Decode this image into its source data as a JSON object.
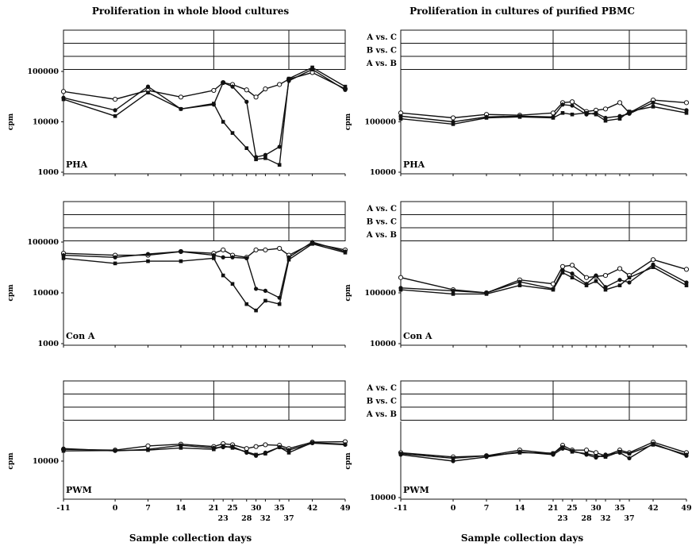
{
  "figure": {
    "titles": [
      "Proliferation in whole blood cultures",
      "Proliferation in cultures of purified PBMC"
    ],
    "xlabel": "Sample collection days",
    "ylabel": "cpm"
  },
  "chart_data": [
    {
      "type": "line",
      "title": "Proliferation in whole blood cultures",
      "panel_label": "PHA",
      "xlabel": "Sample collection days",
      "ylabel": "cpm",
      "yscale": "log",
      "ylim": [
        1000,
        100000
      ],
      "yticks": [
        "1000",
        "10000",
        "100000"
      ],
      "x": [
        -11,
        0,
        7,
        14,
        21,
        23,
        25,
        28,
        30,
        32,
        35,
        37,
        42,
        49
      ],
      "xtick_labels_top": [
        "-11",
        "0",
        "7",
        "14",
        "21",
        "25",
        "30",
        "35",
        "42",
        "49"
      ],
      "xtick_labels_bottom": [
        "23",
        "28",
        "32",
        "37"
      ],
      "series": [
        {
          "marker": "open-circle",
          "values": [
            40000,
            28000,
            42000,
            31000,
            42000,
            60000,
            55000,
            43000,
            31000,
            45000,
            55000,
            70000,
            95000,
            45000
          ]
        },
        {
          "marker": "filled-circle",
          "values": [
            30000,
            17000,
            50000,
            18000,
            22000,
            60000,
            50000,
            25000,
            2000,
            2200,
            3200,
            65000,
            110000,
            43000
          ]
        },
        {
          "marker": "filled-square",
          "values": [
            28000,
            13000,
            38000,
            18000,
            23000,
            10000,
            6000,
            3000,
            1800,
            1900,
            1400,
            72000,
            120000,
            50000
          ]
        }
      ],
      "significance": []
    },
    {
      "type": "line",
      "title": "Proliferation in cultures of purified PBMC",
      "panel_label": "PHA",
      "xlabel": "Sample collection days",
      "ylabel": "cpm",
      "yscale": "log",
      "ylim": [
        10000,
        1000000
      ],
      "yticks": [
        "10000",
        "100000"
      ],
      "x": [
        -11,
        0,
        7,
        14,
        21,
        23,
        25,
        28,
        30,
        32,
        35,
        37,
        42,
        49
      ],
      "xtick_labels_top": [
        "-11",
        "0",
        "7",
        "14",
        "21",
        "25",
        "30",
        "35",
        "42",
        "49"
      ],
      "xtick_labels_bottom": [
        "23",
        "28",
        "32",
        "37"
      ],
      "series": [
        {
          "marker": "open-circle",
          "values": [
            150000,
            120000,
            140000,
            135000,
            150000,
            240000,
            250000,
            160000,
            170000,
            180000,
            240000,
            150000,
            270000,
            240000
          ]
        },
        {
          "marker": "filled-circle",
          "values": [
            130000,
            100000,
            125000,
            130000,
            125000,
            220000,
            210000,
            140000,
            150000,
            120000,
            130000,
            145000,
            240000,
            170000
          ]
        },
        {
          "marker": "filled-square",
          "values": [
            115000,
            90000,
            120000,
            125000,
            120000,
            150000,
            140000,
            150000,
            140000,
            105000,
            115000,
            160000,
            200000,
            150000
          ]
        }
      ],
      "significance": [
        "A vs. C",
        "B vs. C",
        "A vs. B"
      ]
    },
    {
      "type": "line",
      "title": "Proliferation in whole blood cultures",
      "panel_label": "Con A",
      "xlabel": "Sample collection days",
      "ylabel": "cpm",
      "yscale": "log",
      "ylim": [
        1000,
        100000
      ],
      "yticks": [
        "1000",
        "10000",
        "100000"
      ],
      "x": [
        -11,
        0,
        7,
        14,
        21,
        23,
        25,
        28,
        30,
        32,
        35,
        37,
        42,
        49
      ],
      "xtick_labels_top": [
        "-11",
        "0",
        "7",
        "14",
        "21",
        "25",
        "30",
        "35",
        "42",
        "49"
      ],
      "xtick_labels_bottom": [
        "23",
        "28",
        "32",
        "37"
      ],
      "series": [
        {
          "marker": "open-circle",
          "values": [
            60000,
            55000,
            55000,
            65000,
            60000,
            70000,
            55000,
            50000,
            70000,
            70000,
            75000,
            55000,
            95000,
            70000
          ]
        },
        {
          "marker": "filled-circle",
          "values": [
            55000,
            50000,
            58000,
            65000,
            55000,
            50000,
            50000,
            48000,
            12000,
            11000,
            8000,
            50000,
            100000,
            65000
          ]
        },
        {
          "marker": "filled-square",
          "values": [
            48000,
            38000,
            42000,
            42000,
            48000,
            22000,
            15000,
            6000,
            4500,
            7000,
            6000,
            45000,
            92000,
            62000
          ]
        }
      ],
      "significance": []
    },
    {
      "type": "line",
      "title": "Proliferation in cultures of purified PBMC",
      "panel_label": "Con A",
      "xlabel": "Sample collection days",
      "ylabel": "cpm",
      "yscale": "log",
      "ylim": [
        10000,
        1000000
      ],
      "yticks": [
        "10000",
        "100000"
      ],
      "x": [
        -11,
        0,
        7,
        14,
        21,
        23,
        25,
        28,
        30,
        32,
        35,
        37,
        42,
        49
      ],
      "xtick_labels_top": [
        "-11",
        "0",
        "7",
        "14",
        "21",
        "25",
        "30",
        "35",
        "42",
        "49"
      ],
      "xtick_labels_bottom": [
        "23",
        "28",
        "32",
        "37"
      ],
      "series": [
        {
          "marker": "open-circle",
          "values": [
            200000,
            115000,
            100000,
            180000,
            150000,
            330000,
            350000,
            200000,
            210000,
            220000,
            300000,
            220000,
            450000,
            290000
          ]
        },
        {
          "marker": "filled-circle",
          "values": [
            125000,
            110000,
            100000,
            165000,
            120000,
            280000,
            240000,
            150000,
            220000,
            130000,
            180000,
            160000,
            360000,
            160000
          ]
        },
        {
          "marker": "filled-square",
          "values": [
            115000,
            95000,
            95000,
            140000,
            115000,
            250000,
            200000,
            140000,
            170000,
            115000,
            140000,
            200000,
            320000,
            140000
          ]
        }
      ],
      "significance": [
        "A vs. C",
        "B vs. C",
        "A vs. B"
      ]
    },
    {
      "type": "line",
      "title": "Proliferation in whole blood cultures",
      "panel_label": "PWM",
      "xlabel": "Sample collection days",
      "ylabel": "cpm",
      "yscale": "log",
      "ylim": [
        1000,
        100000
      ],
      "yticks": [
        "10000"
      ],
      "x": [
        -11,
        0,
        7,
        14,
        21,
        23,
        25,
        28,
        30,
        32,
        35,
        37,
        42,
        49
      ],
      "xtick_labels_top": [
        "-11",
        "0",
        "7",
        "14",
        "21",
        "25",
        "30",
        "35",
        "42",
        "49"
      ],
      "xtick_labels_bottom": [
        "23",
        "28",
        "32",
        "37"
      ],
      "series": [
        {
          "marker": "open-circle",
          "values": [
            21000,
            20000,
            26000,
            29000,
            25000,
            30000,
            28000,
            22000,
            25000,
            28000,
            27000,
            22000,
            33000,
            34000
          ]
        },
        {
          "marker": "filled-circle",
          "values": [
            22000,
            19000,
            21000,
            27000,
            23000,
            24000,
            25000,
            17000,
            14000,
            17000,
            24000,
            20000,
            31000,
            28000
          ]
        },
        {
          "marker": "filled-square",
          "values": [
            19000,
            19500,
            20000,
            23000,
            21000,
            26000,
            23000,
            18000,
            15000,
            16000,
            24000,
            17000,
            32000,
            29000
          ]
        }
      ],
      "significance": []
    },
    {
      "type": "line",
      "title": "Proliferation in cultures of purified PBMC",
      "panel_label": "PWM",
      "xlabel": "Sample collection days",
      "ylabel": "cpm",
      "yscale": "log",
      "ylim": [
        10000,
        1000000
      ],
      "yticks": [
        "10000"
      ],
      "x": [
        -11,
        0,
        7,
        14,
        21,
        23,
        25,
        28,
        30,
        32,
        35,
        37,
        42,
        49
      ],
      "xtick_labels_top": [
        "-11",
        "0",
        "7",
        "14",
        "21",
        "25",
        "30",
        "35",
        "42",
        "49"
      ],
      "xtick_labels_bottom": [
        "23",
        "28",
        "32",
        "37"
      ],
      "series": [
        {
          "marker": "open-circle",
          "values": [
            170000,
            130000,
            140000,
            200000,
            160000,
            270000,
            200000,
            200000,
            170000,
            140000,
            200000,
            170000,
            330000,
            170000
          ]
        },
        {
          "marker": "filled-circle",
          "values": [
            150000,
            100000,
            130000,
            180000,
            150000,
            220000,
            190000,
            150000,
            125000,
            150000,
            170000,
            120000,
            300000,
            140000
          ]
        },
        {
          "marker": "filled-square",
          "values": [
            160000,
            120000,
            140000,
            170000,
            165000,
            240000,
            180000,
            160000,
            140000,
            130000,
            180000,
            160000,
            280000,
            150000
          ]
        }
      ],
      "significance": [
        "A vs. C",
        "B vs. C",
        "A vs. B"
      ]
    }
  ]
}
